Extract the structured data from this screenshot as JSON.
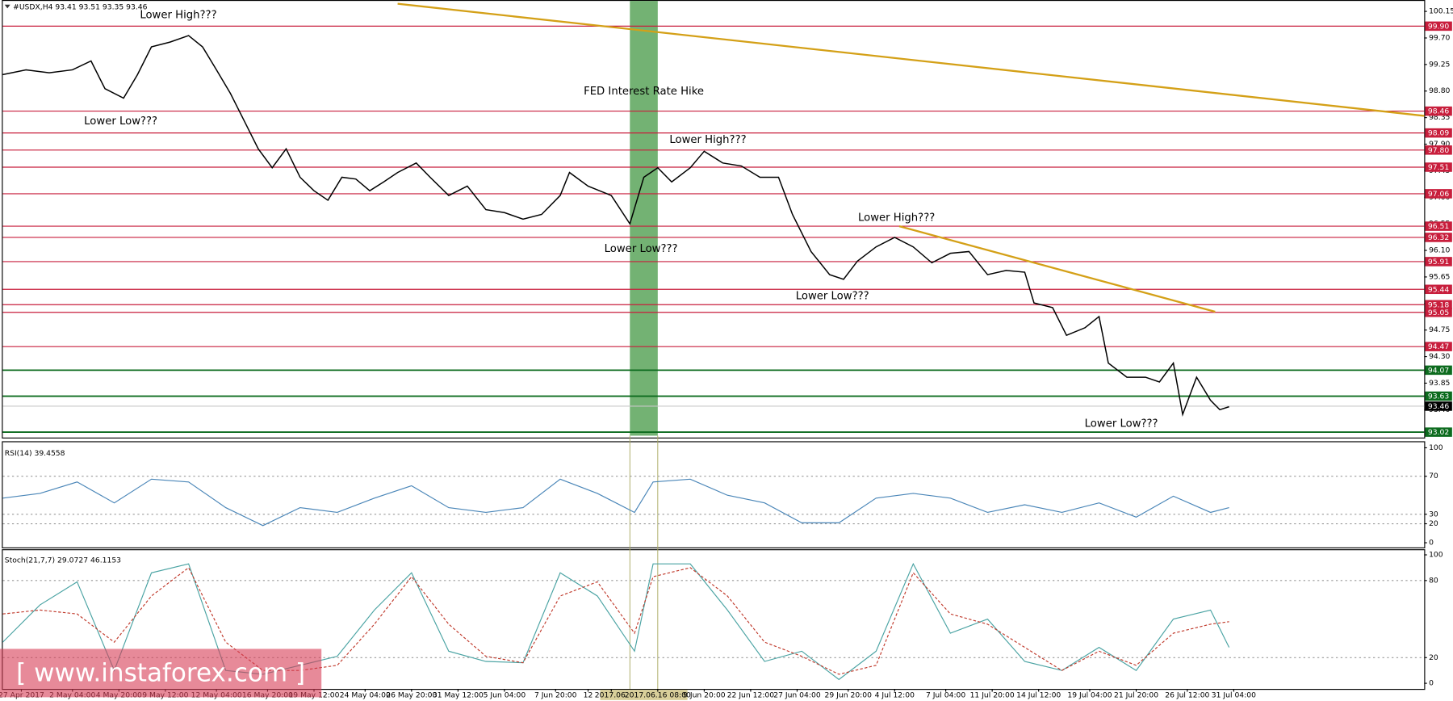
{
  "chart_data": [
    {
      "type": "line",
      "header": "#USDX,H4  93.41 93.51 93.35 93.46",
      "x": [
        0,
        5,
        10,
        15,
        19,
        22,
        26,
        29,
        32,
        36,
        40,
        43,
        46,
        49,
        52,
        55,
        58,
        61,
        64,
        67,
        70,
        73,
        76,
        79,
        82,
        85,
        89,
        92,
        96,
        100,
        104,
        108,
        112,
        116,
        120,
        122,
        126,
        131,
        135,
        138,
        141,
        144,
        148,
        151,
        155,
        159,
        163,
        167,
        170,
        174,
        178,
        181,
        184,
        188,
        192,
        196,
        200,
        204,
        208,
        212,
        216,
        220,
        222,
        226,
        229,
        233,
        236,
        238,
        242,
        246,
        249,
        252,
        254,
        257,
        260,
        262,
        264
      ],
      "values": [
        99.08,
        99.16,
        99.11,
        99.16,
        99.31,
        98.84,
        98.68,
        99.08,
        99.55,
        99.63,
        99.74,
        99.55,
        99.16,
        98.76,
        98.29,
        97.82,
        97.5,
        97.82,
        97.34,
        97.11,
        96.95,
        97.34,
        97.31,
        97.11,
        97.26,
        97.42,
        97.58,
        97.34,
        97.03,
        97.19,
        96.79,
        96.74,
        96.63,
        96.71,
        97.03,
        97.42,
        97.19,
        97.03,
        96.55,
        97.34,
        97.5,
        97.26,
        97.5,
        97.78,
        97.58,
        97.53,
        97.34,
        97.34,
        96.71,
        96.08,
        95.69,
        95.61,
        95.92,
        96.16,
        96.32,
        96.16,
        95.89,
        96.05,
        96.08,
        95.69,
        95.76,
        95.73,
        95.21,
        95.13,
        94.66,
        94.79,
        94.98,
        94.19,
        93.95,
        93.95,
        93.87,
        94.19,
        93.32,
        93.95,
        93.56,
        93.4,
        93.45
      ],
      "color": "#000000",
      "xlim": [
        0,
        306
      ],
      "ylim": [
        92.96,
        100.28
      ],
      "yticks": [
        {
          "value": 93.4,
          "label": "93.40"
        },
        93.85,
        {
          "value": 94.3,
          "label": "94.30"
        },
        94.75,
        {
          "value": 95.2,
          "label": "95.20"
        },
        95.65,
        {
          "value": 96.1,
          "label": "96.10"
        },
        96.55,
        {
          "value": 97,
          "label": "97.00"
        },
        97.45,
        {
          "value": 97.9,
          "label": "97.90"
        },
        98.35,
        {
          "value": 98.8,
          "label": "98.80"
        },
        99.25,
        {
          "value": 99.7,
          "label": "99.70"
        },
        100.15
      ],
      "xticks": [
        {
          "value": 4,
          "label": "27 Apr 2017"
        },
        {
          "value": 15,
          "label": "2 May 04:00"
        },
        {
          "value": 25,
          "label": "4 May 20:00"
        },
        {
          "value": 35,
          "label": "9 May 12:00"
        },
        {
          "value": 46,
          "label": "12 May 04:00"
        },
        {
          "value": 57,
          "label": "16 May 20:00"
        },
        {
          "value": 67,
          "label": "19 May 12:00"
        },
        {
          "value": 78,
          "label": "24 May 04:00"
        },
        {
          "value": 88,
          "label": "26 May 20:00"
        },
        {
          "value": 98,
          "label": "31 May 12:00"
        },
        {
          "value": 108,
          "label": "5 Jun 04:00"
        },
        {
          "value": 119,
          "label": "7 Jun 20:00"
        },
        {
          "value": 126,
          "label": "12"
        },
        {
          "value": 131,
          "label": "2017.06."
        },
        {
          "value": 141,
          "label": "2017.06.16 08:00"
        },
        {
          "value": 151,
          "label": "9 Jun 20:00"
        },
        {
          "value": 161,
          "label": "22 Jun 12:00"
        },
        {
          "value": 171,
          "label": "27 Jun 04:00"
        },
        {
          "value": 182,
          "label": "29 Jun 20:00"
        },
        {
          "value": 192,
          "label": "4 Jul 12:00"
        },
        {
          "value": 203,
          "label": "7 Jul 04:00"
        },
        {
          "value": 213,
          "label": "11 Jul 20:00"
        },
        {
          "value": 223,
          "label": "14 Jul 12:00"
        },
        {
          "value": 234,
          "label": "19 Jul 04:00"
        },
        {
          "value": 244,
          "label": "21 Jul 20:00"
        },
        {
          "value": 255,
          "label": "26 Jul 12:00"
        },
        {
          "value": 265,
          "label": "31 Jul 04:00"
        }
      ],
      "band": [
        135,
        141
      ],
      "band_color": "#5aa55a",
      "band_label": "FED Interest Rate Hike",
      "levels": [
        {
          "value": 99.9,
          "label": "99.90",
          "color": "#c81e3c"
        },
        {
          "value": 98.46,
          "label": "98.46",
          "color": "#c81e3c"
        },
        {
          "value": 98.09,
          "label": "98.09",
          "color": "#c81e3c"
        },
        {
          "value": 97.8,
          "label": "97.80",
          "color": "#c81e3c"
        },
        {
          "value": 97.51,
          "label": "97.51",
          "color": "#c81e3c"
        },
        {
          "value": 97.06,
          "label": "97.06",
          "color": "#c81e3c"
        },
        {
          "value": 96.51,
          "label": "96.51",
          "color": "#c81e3c"
        },
        {
          "value": 96.32,
          "label": "96.32",
          "color": "#c81e3c"
        },
        {
          "value": 95.91,
          "label": "95.91",
          "color": "#c81e3c"
        },
        {
          "value": 95.44,
          "label": "95.44",
          "color": "#c81e3c"
        },
        {
          "value": 95.18,
          "label": "95.18",
          "color": "#c81e3c"
        },
        {
          "value": 95.05,
          "label": "95.05",
          "color": "#c81e3c"
        },
        {
          "value": 94.47,
          "label": "94.47",
          "color": "#c81e3c"
        },
        {
          "value": 94.07,
          "label": "94.07",
          "color": "#0c6b1e"
        },
        {
          "value": 93.63,
          "label": "93.63",
          "color": "#0c6b1e"
        },
        {
          "value": 93.02,
          "label": "93.02",
          "color": "#0c6b1e"
        }
      ],
      "last": {
        "value": 93.46,
        "label": "93.46",
        "color": "#000000"
      },
      "trendlines": [
        {
          "x": [
            85,
            306
          ],
          "values": [
            100.28,
            98.38
          ],
          "color": "#d4a017"
        },
        {
          "x": [
            193,
            261
          ],
          "values": [
            96.51,
            95.06
          ],
          "color": "#d4a017"
        }
      ],
      "annotations": [
        "Lower High???",
        "Lower Low???",
        "Lower High???",
        "Lower Low???",
        "Lower High???",
        "Lower Low???",
        "Lower Low???"
      ]
    },
    {
      "type": "line",
      "title": "RSI(14) 39.4558",
      "x": [
        0,
        8,
        16,
        24,
        32,
        40,
        48,
        56,
        64,
        72,
        80,
        88,
        96,
        104,
        112,
        120,
        128,
        136,
        140,
        148,
        156,
        164,
        172,
        180,
        188,
        196,
        204,
        212,
        220,
        228,
        236,
        244,
        252,
        260,
        264
      ],
      "series": [
        {
          "color": "#4a86b8",
          "values": [
            47,
            52,
            64,
            42,
            67,
            64,
            37,
            18,
            37,
            32,
            47,
            60,
            37,
            32,
            37,
            67,
            52,
            32,
            64,
            67,
            50,
            42,
            21,
            21,
            47,
            52,
            47,
            32,
            40,
            32,
            42,
            27,
            49,
            32,
            37
          ]
        }
      ],
      "xlim": [
        0,
        306
      ],
      "ylim": [
        0,
        100
      ],
      "yticks": [
        0,
        20,
        30,
        70,
        100
      ]
    },
    {
      "type": "line",
      "title": "Stoch(21,7,7) 29.0727 46.1153",
      "x": [
        0,
        8,
        16,
        24,
        32,
        40,
        48,
        56,
        64,
        72,
        80,
        88,
        96,
        104,
        112,
        120,
        128,
        136,
        140,
        148,
        156,
        164,
        172,
        180,
        188,
        196,
        204,
        212,
        220,
        228,
        236,
        244,
        252,
        260,
        264
      ],
      "series": [
        {
          "color": "#4aa3a3",
          "values": [
            32,
            61,
            79,
            10,
            86,
            93,
            10,
            7,
            14,
            21,
            57,
            86,
            25,
            17,
            16,
            86,
            68,
            25,
            93,
            93,
            57,
            17,
            25,
            3,
            25,
            93,
            39,
            50,
            17,
            10,
            28,
            10,
            50,
            57,
            28
          ]
        },
        {
          "color": "#c0392b",
          "dashed": true,
          "values": [
            54,
            57,
            54,
            32,
            68,
            90,
            32,
            10,
            10,
            14,
            46,
            83,
            46,
            21,
            16,
            68,
            79,
            39,
            83,
            90,
            68,
            32,
            21,
            7,
            14,
            86,
            54,
            46,
            28,
            10,
            25,
            14,
            39,
            46,
            48
          ]
        }
      ],
      "xlim": [
        0,
        306
      ],
      "ylim": [
        0,
        100
      ],
      "yticks": [
        0,
        20,
        80,
        100
      ]
    }
  ],
  "watermark": "[ www.instaforex.com ]"
}
